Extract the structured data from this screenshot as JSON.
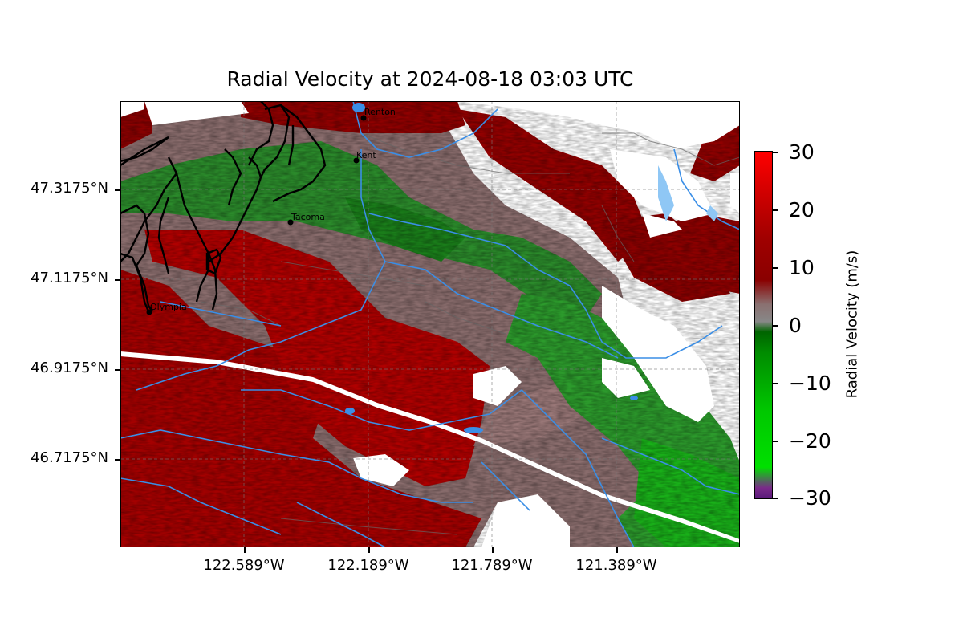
{
  "title": "Radial Velocity at 2024-08-18 03:03 UTC",
  "lat_labels": [
    "47.3175°N",
    "47.1175°N",
    "46.9175°N",
    "46.7175°N"
  ],
  "lon_labels": [
    "122.589°W",
    "122.189°W",
    "121.789°W",
    "121.389°W"
  ],
  "cities": [
    {
      "name": "Renton"
    },
    {
      "name": "Kent"
    },
    {
      "name": "Tacoma"
    },
    {
      "name": "Olympia"
    }
  ],
  "colorbar": {
    "label": "Radial Velocity (m/s)",
    "ticks": [
      "30",
      "20",
      "10",
      "0",
      "−10",
      "−20",
      "−30"
    ],
    "min": -30,
    "max": 30
  },
  "colors": {
    "red": "#a00000",
    "dark_red": "#8a0000",
    "gray": "#888888",
    "green": "#008000",
    "bright_green": "#00c800",
    "river": "#3a8ee6"
  }
}
